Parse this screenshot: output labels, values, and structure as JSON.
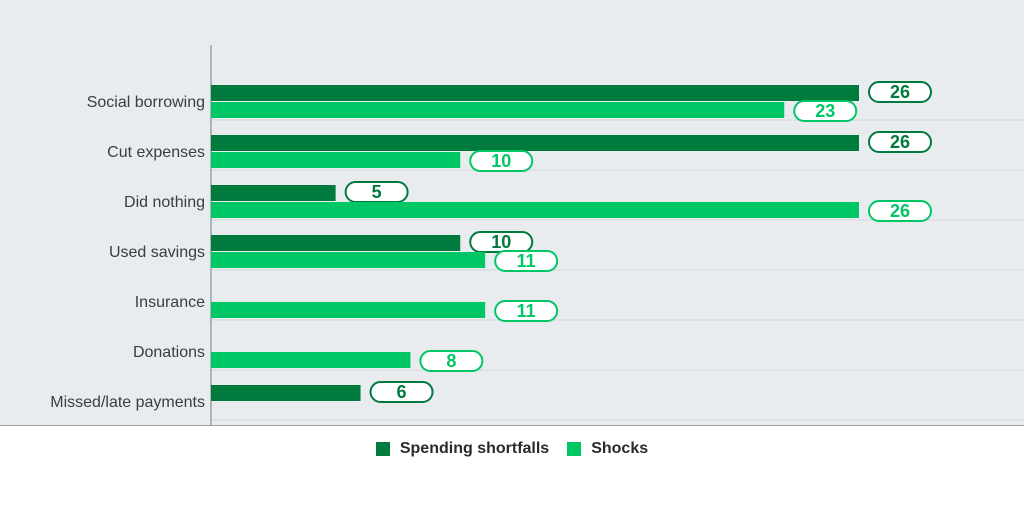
{
  "chart_data": {
    "type": "bar",
    "orientation": "horizontal",
    "categories": [
      "Social borrowing",
      "Cut expenses",
      "Did nothing",
      "Used savings",
      "Insurance",
      "Donations",
      "Missed/late payments"
    ],
    "series": [
      {
        "name": "Spending shortfalls",
        "color": "#007a3d",
        "values": [
          26,
          26,
          5,
          10,
          null,
          null,
          6
        ]
      },
      {
        "name": "Shocks",
        "color": "#00c766",
        "values": [
          23,
          10,
          26,
          11,
          11,
          8,
          null
        ]
      }
    ],
    "xlim": [
      0,
      30
    ],
    "grid": true,
    "legend_position": "bottom-center",
    "data_labels": true
  }
}
